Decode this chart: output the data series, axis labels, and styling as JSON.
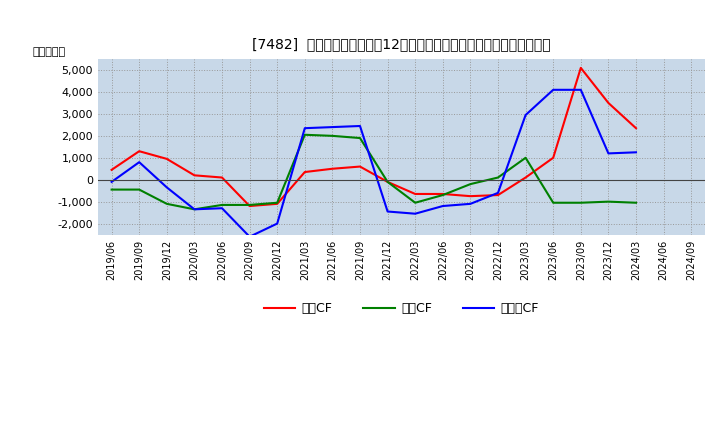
{
  "title": "[7482]  キャッシュフローの12か月移動合計の対前年同期増減額の推移",
  "ylabel": "（百万円）",
  "background_color": "#ffffff",
  "grid_color": "#999999",
  "plot_bg_color": "#c8d8e8",
  "x_labels": [
    "2019/06",
    "2019/09",
    "2019/12",
    "2020/03",
    "2020/06",
    "2020/09",
    "2020/12",
    "2021/03",
    "2021/06",
    "2021/09",
    "2021/12",
    "2022/03",
    "2022/06",
    "2022/09",
    "2022/12",
    "2023/03",
    "2023/06",
    "2023/09",
    "2023/12",
    "2024/03",
    "2024/06",
    "2024/09"
  ],
  "operating_cf": [
    450,
    1300,
    950,
    200,
    100,
    -1200,
    -1100,
    350,
    500,
    600,
    -100,
    -650,
    -650,
    -750,
    -700,
    100,
    1000,
    5100,
    3500,
    2350,
    null,
    null
  ],
  "investing_cf": [
    -450,
    -450,
    -1100,
    -1350,
    -1150,
    -1150,
    -1050,
    2050,
    2000,
    1900,
    -100,
    -1050,
    -700,
    -200,
    100,
    1000,
    -1050,
    -1050,
    -1000,
    -1050,
    null,
    null
  ],
  "free_cf": [
    -100,
    800,
    -350,
    -1350,
    -1300,
    -2600,
    -2000,
    2350,
    2400,
    2450,
    -1450,
    -1550,
    -1200,
    -1100,
    -600,
    2950,
    4100,
    4100,
    1200,
    1250,
    null,
    null
  ],
  "operating_color": "#ff0000",
  "investing_color": "#008000",
  "free_color": "#0000ff",
  "ylim": [
    -2500,
    5500
  ],
  "yticks": [
    -2000,
    -1000,
    0,
    1000,
    2000,
    3000,
    4000,
    5000
  ],
  "legend_labels": [
    "営業CF",
    "投資CF",
    "フリーCF"
  ]
}
